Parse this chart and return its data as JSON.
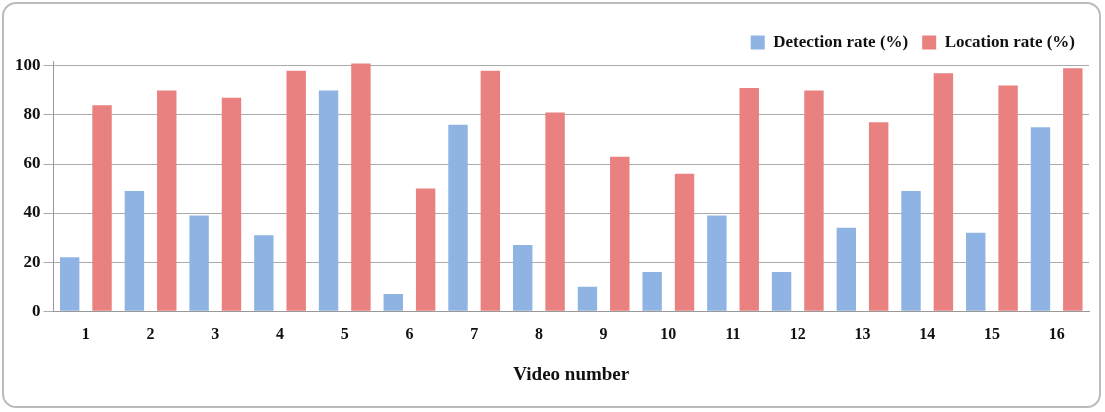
{
  "chart_data": {
    "type": "bar",
    "xlabel": "Video number",
    "categories": [
      "1",
      "2",
      "3",
      "4",
      "5",
      "6",
      "7",
      "8",
      "9",
      "10",
      "11",
      "12",
      "13",
      "14",
      "15",
      "16"
    ],
    "series": [
      {
        "name": "Detection rate (%)",
        "color": "#8fb4e3",
        "values": [
          22,
          49,
          39,
          31,
          90,
          7,
          76,
          27,
          10,
          16,
          39,
          16,
          34,
          49,
          32,
          75
        ]
      },
      {
        "name": "Location rate (%)",
        "color": "#e8817f",
        "values": [
          84,
          90,
          87,
          98,
          101,
          50,
          98,
          81,
          63,
          56,
          91,
          90,
          77,
          97,
          92,
          99
        ]
      }
    ],
    "ylim": [
      0,
      102
    ],
    "yticks": [
      0,
      20,
      40,
      60,
      80,
      100
    ],
    "grid": "y",
    "legend": "top right"
  }
}
